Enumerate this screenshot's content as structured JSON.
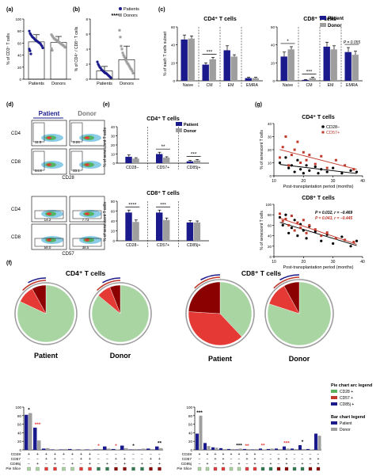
{
  "colors": {
    "patient": "#1a1a8c",
    "donor": "#9e9e9e",
    "cd28": "#5db35d",
    "cd57": "#c0392b",
    "cd85j": "#1a1a8c",
    "pie_green": "#a8d5a2",
    "pie_darkred": "#8b0000",
    "pie_red": "#e53935",
    "pie_darkgreen": "#2e7d4f"
  },
  "panels": {
    "a": "(a)",
    "b": "(b)",
    "c": "(c)",
    "d": "(d)",
    "e": "(e)",
    "f": "(f)",
    "g": "(g)"
  },
  "legend": {
    "patients": "Patients",
    "donors": "Donors",
    "patient": "Patient",
    "donor": "Donor"
  },
  "chart_data": [
    {
      "id": "a",
      "type": "bar",
      "categories": [
        "Patients",
        "Donors"
      ],
      "values": [
        62,
        61
      ],
      "errors": [
        12,
        10
      ],
      "ylabel": "% of CD3⁺ T cells",
      "ylim": [
        0,
        100
      ],
      "yticks": [
        0,
        20,
        40,
        60,
        80,
        100
      ],
      "points": {
        "Patients": [
          80,
          76,
          74,
          72,
          70,
          69,
          68,
          66,
          65,
          64,
          63,
          62,
          61,
          60,
          59,
          57,
          55,
          52,
          50,
          47,
          42
        ],
        "Donors": [
          74,
          72,
          70,
          68,
          67,
          66,
          65,
          64,
          63,
          62,
          61,
          60,
          59,
          58,
          57,
          56,
          55,
          53,
          51,
          48
        ]
      }
    },
    {
      "id": "b",
      "type": "bar",
      "categories": [
        "Patients",
        "Donors"
      ],
      "values": [
        1.1,
        2.6
      ],
      "errors": [
        0.6,
        1.8
      ],
      "ylabel": "% of CD4⁺ / CD8⁺ T cells",
      "ylim": [
        0,
        8
      ],
      "yticks": [
        0,
        2,
        4,
        6,
        8
      ],
      "significance": "****",
      "points": {
        "Patients": [
          2.3,
          2.0,
          1.8,
          1.6,
          1.5,
          1.3,
          1.2,
          1.1,
          1.0,
          0.9,
          0.8,
          0.8,
          0.7,
          0.6,
          0.5,
          0.4,
          0.3,
          0.2
        ],
        "Donors": [
          6.5,
          5.6,
          4.4,
          4.0,
          3.5,
          3.2,
          3.0,
          2.8,
          2.5,
          2.3,
          2.1,
          2.0,
          1.8,
          1.6,
          1.4,
          1.3,
          1.1,
          0.8
        ]
      }
    },
    {
      "id": "c-cd4",
      "type": "bar",
      "title": "CD4⁺ T cells",
      "categories": [
        "Naive",
        "CM",
        "EM",
        "EMRA"
      ],
      "series": [
        {
          "name": "Patient",
          "values": [
            46,
            18,
            34,
            3
          ],
          "errors": [
            5,
            2,
            5,
            1
          ]
        },
        {
          "name": "Donor",
          "values": [
            47,
            24,
            27,
            3
          ],
          "errors": [
            3,
            2,
            2,
            1
          ]
        }
      ],
      "ylabel": "% of each T cells subset",
      "ylim": [
        0,
        60
      ],
      "yticks": [
        0,
        20,
        40,
        60
      ],
      "significance": [
        {
          "category": "CM",
          "label": "***"
        }
      ]
    },
    {
      "id": "c-cd8",
      "type": "bar",
      "title": "CD8⁺ T cells",
      "categories": [
        "Naive",
        "CM",
        "EM",
        "EMRA"
      ],
      "series": [
        {
          "name": "Patient",
          "values": [
            27,
            1,
            38,
            32
          ],
          "errors": [
            5,
            0.5,
            5,
            5
          ]
        },
        {
          "name": "Donor",
          "values": [
            35,
            3,
            35,
            29
          ],
          "errors": [
            3,
            1,
            4,
            4
          ]
        }
      ],
      "ylim": [
        0,
        60
      ],
      "yticks": [
        0,
        20,
        40,
        60
      ],
      "significance": [
        {
          "category": "Naive",
          "label": "*"
        },
        {
          "category": "CM",
          "label": "***"
        },
        {
          "category": "EMRA",
          "label": "P = 0.055"
        }
      ]
    },
    {
      "id": "e-cd4",
      "type": "bar",
      "title": "CD4⁺ T cells",
      "categories": [
        "CD28−",
        "CD57+",
        "CD85j+"
      ],
      "series": [
        {
          "name": "Patient",
          "values": [
            7,
            10,
            2
          ],
          "errors": [
            2,
            2,
            1
          ]
        },
        {
          "name": "Donor",
          "values": [
            5,
            6,
            3
          ],
          "errors": [
            1,
            1,
            1
          ]
        }
      ],
      "ylabel": "% of senescent T cells",
      "ylim": [
        0,
        40
      ],
      "yticks": [
        0,
        10,
        20,
        30,
        40
      ],
      "significance": [
        {
          "category": "CD57+",
          "label": "**"
        },
        {
          "category": "CD85j+",
          "label": "***"
        }
      ]
    },
    {
      "id": "e-cd8",
      "type": "bar",
      "title": "CD8⁺ T cells",
      "categories": [
        "CD28−",
        "CD57+",
        "CD85j+"
      ],
      "series": [
        {
          "name": "Patient",
          "values": [
            57,
            57,
            37
          ],
          "errors": [
            5,
            5,
            4
          ]
        },
        {
          "name": "Donor",
          "values": [
            38,
            42,
            37
          ],
          "errors": [
            4,
            4,
            3
          ]
        }
      ],
      "ylabel": "% of senescent T cells",
      "ylim": [
        0,
        80
      ],
      "yticks": [
        0,
        20,
        40,
        60,
        80
      ],
      "significance": [
        {
          "category": "CD28−",
          "label": "****"
        },
        {
          "category": "CD57+",
          "label": "***"
        }
      ]
    },
    {
      "id": "g-cd4",
      "type": "scatter",
      "title": "CD4⁺ T cells",
      "xlabel": "Post-transplantation period (months)",
      "ylabel": "% of senescent T cells",
      "xlim": [
        10,
        40
      ],
      "ylim": [
        0,
        40
      ],
      "xticks": [
        10,
        20,
        30,
        40
      ],
      "yticks": [
        0,
        10,
        20,
        30,
        40
      ],
      "series": [
        {
          "name": "CD28−",
          "points": [
            [
              12,
              10
            ],
            [
              14,
              14
            ],
            [
              15,
              6
            ],
            [
              16,
              8
            ],
            [
              17,
              3
            ],
            [
              18,
              12
            ],
            [
              19,
              5
            ],
            [
              20,
              2
            ],
            [
              21,
              8
            ],
            [
              22,
              4
            ],
            [
              24,
              7
            ],
            [
              25,
              2
            ],
            [
              26,
              5
            ],
            [
              28,
              3
            ],
            [
              30,
              6
            ],
            [
              33,
              2
            ],
            [
              36,
              4
            ],
            [
              38,
              3
            ]
          ]
        },
        {
          "name": "CD57+",
          "points": [
            [
              12,
              14
            ],
            [
              13,
              22
            ],
            [
              14,
              30
            ],
            [
              15,
              8
            ],
            [
              16,
              16
            ],
            [
              17,
              20
            ],
            [
              18,
              26
            ],
            [
              19,
              10
            ],
            [
              20,
              18
            ],
            [
              21,
              12
            ],
            [
              22,
              16
            ],
            [
              24,
              9
            ],
            [
              26,
              15
            ],
            [
              28,
              6
            ],
            [
              31,
              12
            ],
            [
              34,
              8
            ],
            [
              37,
              5
            ]
          ]
        }
      ]
    },
    {
      "id": "g-cd8",
      "type": "scatter",
      "title": "CD8⁺ T cells",
      "xlabel": "Post-transplantation period (months)",
      "ylabel": "% of senescent T cells",
      "xlim": [
        10,
        40
      ],
      "ylim": [
        0,
        100
      ],
      "xticks": [
        10,
        20,
        30,
        40
      ],
      "yticks": [
        0,
        20,
        40,
        60,
        80,
        100
      ],
      "annotations": [
        "P = 0.032, r = −0.469",
        "P = 0.043, r = −0.445"
      ],
      "series": [
        {
          "name": "CD28−",
          "points": [
            [
              12,
              75
            ],
            [
              13,
              60
            ],
            [
              14,
              80
            ],
            [
              15,
              45
            ],
            [
              16,
              55
            ],
            [
              17,
              70
            ],
            [
              18,
              40
            ],
            [
              19,
              62
            ],
            [
              20,
              50
            ],
            [
              21,
              35
            ],
            [
              22,
              58
            ],
            [
              24,
              48
            ],
            [
              26,
              30
            ],
            [
              28,
              42
            ],
            [
              30,
              25
            ],
            [
              33,
              38
            ],
            [
              36,
              20
            ],
            [
              38,
              30
            ]
          ]
        },
        {
          "name": "CD57+",
          "points": [
            [
              12,
              82
            ],
            [
              13,
              68
            ],
            [
              14,
              72
            ],
            [
              15,
              60
            ],
            [
              16,
              78
            ],
            [
              17,
              50
            ],
            [
              18,
              65
            ],
            [
              19,
              55
            ],
            [
              20,
              70
            ],
            [
              21,
              45
            ],
            [
              22,
              60
            ],
            [
              24,
              52
            ],
            [
              26,
              40
            ],
            [
              28,
              46
            ],
            [
              31,
              35
            ],
            [
              34,
              32
            ],
            [
              37,
              28
            ]
          ]
        }
      ]
    },
    {
      "id": "f-cd4",
      "type": "bar",
      "title": "CD4⁺ T cells",
      "categories": [
        "1",
        "2",
        "3",
        "4",
        "5",
        "6",
        "7",
        "8",
        "9",
        "10",
        "11",
        "12",
        "13",
        "14",
        "15",
        "16"
      ],
      "series": [
        {
          "name": "Patient",
          "values": [
            82,
            52,
            3,
            1,
            1,
            2,
            1,
            1,
            1,
            8,
            2,
            10,
            1,
            1,
            3,
            8
          ]
        },
        {
          "name": "Donor",
          "values": [
            86,
            22,
            4,
            1,
            2,
            1,
            1,
            1,
            2,
            3,
            1,
            4,
            2,
            3,
            2,
            4
          ]
        }
      ],
      "ylim": [
        0,
        100
      ],
      "yticks": [
        0,
        20,
        40,
        60,
        80,
        100
      ],
      "significance": [
        "*",
        "***",
        "",
        "",
        "",
        "",
        "",
        "",
        "*",
        "",
        "*",
        "",
        "*",
        "",
        "",
        "**"
      ],
      "rows": {
        "CD28": [
          "+",
          "+",
          "+",
          "+",
          "+",
          "+",
          "+",
          "+",
          "−",
          "−",
          "−",
          "−",
          "−",
          "−",
          "−",
          "−"
        ],
        "CD57": [
          "−",
          "−",
          "+",
          "+",
          "−",
          "−",
          "+",
          "+",
          "−",
          "−",
          "+",
          "+",
          "−",
          "−",
          "+",
          "+"
        ],
        "CD85j": [
          "−",
          "+",
          "−",
          "+",
          "−",
          "+",
          "−",
          "+",
          "−",
          "+",
          "−",
          "+",
          "−",
          "+",
          "−",
          "+"
        ]
      }
    },
    {
      "id": "f-cd8",
      "type": "bar",
      "title": "CD8⁺ T cells",
      "categories": [
        "1",
        "2",
        "3",
        "4",
        "5",
        "6",
        "7",
        "8",
        "9",
        "10",
        "11",
        "12",
        "13",
        "14",
        "15",
        "16"
      ],
      "series": [
        {
          "name": "Patient",
          "values": [
            38,
            16,
            6,
            4,
            2,
            1,
            2,
            1,
            3,
            2,
            3,
            8,
            3,
            11,
            2,
            38
          ]
        },
        {
          "name": "Donor",
          "values": [
            80,
            9,
            5,
            2,
            2,
            3,
            2,
            2,
            1,
            3,
            2,
            3,
            2,
            2,
            1,
            33
          ]
        }
      ],
      "ylim": [
        0,
        100
      ],
      "yticks": [
        0,
        20,
        40,
        60,
        80,
        100
      ],
      "significance": [
        "***",
        "",
        "",
        "",
        "",
        "***",
        "**",
        "",
        "**",
        "",
        "",
        "***",
        "",
        "*",
        "",
        ""
      ],
      "rows": {
        "CD28": [
          "+",
          "+",
          "+",
          "+",
          "+",
          "+",
          "+",
          "+",
          "−",
          "−",
          "−",
          "−",
          "−",
          "−",
          "−",
          "−"
        ],
        "CD57": [
          "−",
          "−",
          "+",
          "+",
          "−",
          "−",
          "+",
          "+",
          "−",
          "−",
          "+",
          "+",
          "−",
          "−",
          "+",
          "+"
        ],
        "CD85j": [
          "−",
          "+",
          "−",
          "+",
          "−",
          "+",
          "−",
          "+",
          "−",
          "+",
          "−",
          "+",
          "−",
          "+",
          "−",
          "+"
        ]
      }
    },
    {
      "id": "f-pies",
      "type": "pie",
      "titles": [
        "CD4⁺ T cells",
        "CD8⁺ T cells"
      ],
      "pies": [
        {
          "name": "Patient",
          "slices": [
            {
              "label": "CD28+ only",
              "value": 82
            },
            {
              "label": "CD57+",
              "value": 10
            },
            {
              "label": "CD85j+",
              "value": 8
            }
          ]
        },
        {
          "name": "Donor",
          "slices": [
            {
              "label": "CD28+ only",
              "value": 86
            },
            {
              "label": "CD57+",
              "value": 8
            },
            {
              "label": "CD85j+",
              "value": 6
            }
          ]
        },
        {
          "name": "Patient",
          "slices": [
            {
              "label": "CD28+ only",
              "value": 38
            },
            {
              "label": "CD57+",
              "value": 38
            },
            {
              "label": "CD28−",
              "value": 24
            }
          ]
        },
        {
          "name": "Donor",
          "slices": [
            {
              "label": "CD28+ only",
              "value": 80
            },
            {
              "label": "CD57+",
              "value": 12
            },
            {
              "label": "CD28−",
              "value": 8
            }
          ]
        }
      ]
    }
  ],
  "flow": {
    "rows": [
      "CD4",
      "CD8",
      "CD4",
      "CD8"
    ],
    "xlabels": [
      "CD28",
      "CD57"
    ],
    "gate_values": {
      "cd4_cd28": [
        "11.5",
        "3.24"
      ],
      "cd8_cd28": [
        "54.8",
        "33.1"
      ],
      "cd4_cd57": [
        "14.2",
        "7.73"
      ],
      "cd8_cd57": [
        "58.0",
        "38.5"
      ]
    },
    "columns": [
      "Patient",
      "Donor"
    ]
  },
  "pie_legend": {
    "title": "Pie chart arc legend",
    "items": [
      {
        "label": "CD28 +",
        "color": "#5db35d"
      },
      {
        "label": "CD57 +",
        "color": "#c0392b"
      },
      {
        "label": "CD85j +",
        "color": "#1a1a8c"
      }
    ]
  },
  "bar_legend": {
    "title": "Bar chart legend",
    "items": [
      {
        "label": "Patient",
        "color": "#1a1a8c"
      },
      {
        "label": "Donor",
        "color": "#9e9e9e"
      }
    ]
  },
  "row_labels": [
    "CD28",
    "CD57",
    "CD85j",
    "Pie Slice"
  ]
}
